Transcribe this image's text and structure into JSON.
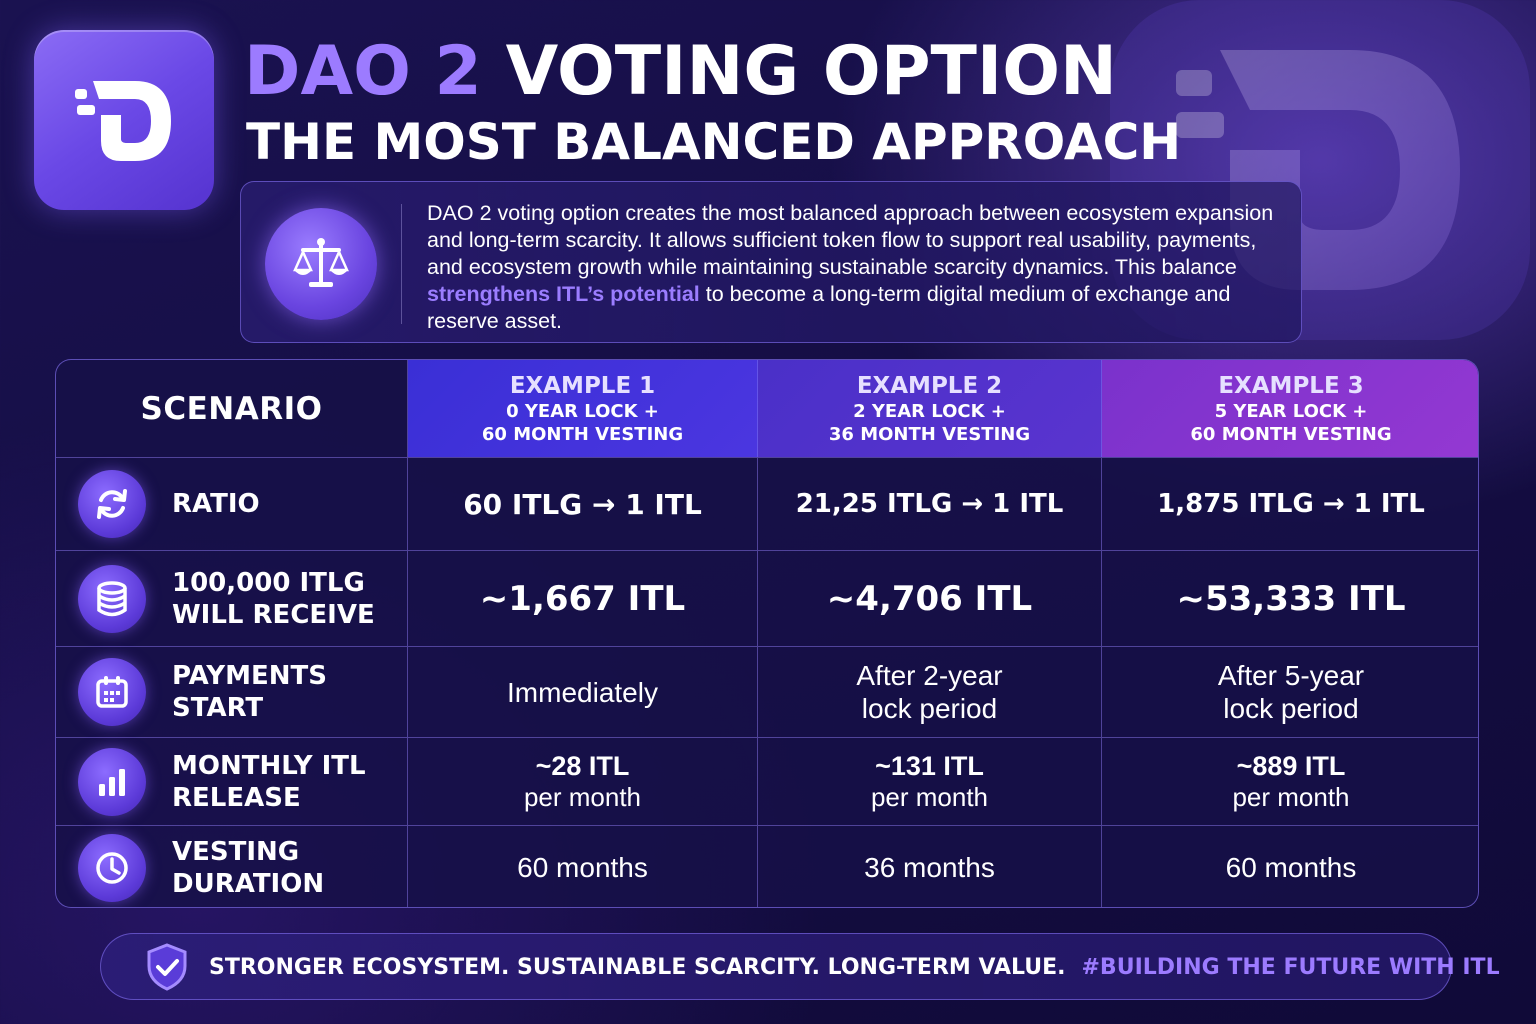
{
  "header": {
    "title_accent": "DAO 2",
    "title_rest": "VOTING OPTION",
    "subtitle": "THE MOST BALANCED APPROACH"
  },
  "description": {
    "text_before": "DAO 2 voting option creates the most balanced approach between ecosystem expansion and long-term scarcity. It allows sufficient token flow to support real usability, payments, and ecosystem growth while maintaining sustainable scarcity dynamics. This balance ",
    "highlight": "strengthens ITL’s potential",
    "text_after": " to become a long-term digital medium of exchange and reserve asset.",
    "icon": "scale-icon"
  },
  "table": {
    "header": {
      "scenario": "SCENARIO",
      "examples": [
        {
          "title": "EXAMPLE 1",
          "line1": "0 YEAR LOCK +",
          "line2": "60 MONTH VESTING"
        },
        {
          "title": "EXAMPLE 2",
          "line1": "2 YEAR LOCK +",
          "line2": "36 MONTH VESTING"
        },
        {
          "title": "EXAMPLE 3",
          "line1": "5 YEAR LOCK +",
          "line2": "60 MONTH VESTING"
        }
      ]
    },
    "rows": [
      {
        "icon": "refresh-icon",
        "label_line1": "RATIO",
        "label_line2": "",
        "values": [
          {
            "line1": "60 ITLG → 1 ITL",
            "line2": ""
          },
          {
            "line1": "21,25 ITLG → 1 ITL",
            "line2": ""
          },
          {
            "line1": "1,875 ITLG → 1 ITL",
            "line2": ""
          }
        ]
      },
      {
        "icon": "coins-icon",
        "label_line1": "100,000 ITLG",
        "label_line2": "WILL RECEIVE",
        "values": [
          {
            "line1": "~1,667 ITL",
            "line2": ""
          },
          {
            "line1": "~4,706 ITL",
            "line2": ""
          },
          {
            "line1": "~53,333 ITL",
            "line2": ""
          }
        ]
      },
      {
        "icon": "calendar-icon",
        "label_line1": "PAYMENTS",
        "label_line2": "START",
        "values": [
          {
            "line1": "Immediately",
            "line2": ""
          },
          {
            "line1": "After 2-year",
            "line2": "lock period"
          },
          {
            "line1": "After 5-year",
            "line2": "lock period"
          }
        ]
      },
      {
        "icon": "bar-chart-icon",
        "label_line1": "MONTHLY ITL",
        "label_line2": "RELEASE",
        "values": [
          {
            "line1": "~28 ITL",
            "line2": "per month"
          },
          {
            "line1": "~131 ITL",
            "line2": "per month"
          },
          {
            "line1": "~889 ITL",
            "line2": "per month"
          }
        ]
      },
      {
        "icon": "clock-icon",
        "label_line1": "VESTING",
        "label_line2": "DURATION",
        "values": [
          {
            "line1": "60 months",
            "line2": ""
          },
          {
            "line1": "36 months",
            "line2": ""
          },
          {
            "line1": "60 months",
            "line2": ""
          }
        ]
      }
    ]
  },
  "footer": {
    "icon": "shield-check-icon",
    "text": "STRONGER ECOSYSTEM. SUSTAINABLE SCARCITY. LONG-TERM VALUE.",
    "hashtag": "#BUILDING THE FUTURE WITH ITL"
  },
  "colors": {
    "accent": "#9c7bff",
    "background": "#150e45",
    "example1_header": "#3a2fd6",
    "example2_header": "#4a30c8",
    "example3_header": "#7a32cc"
  }
}
